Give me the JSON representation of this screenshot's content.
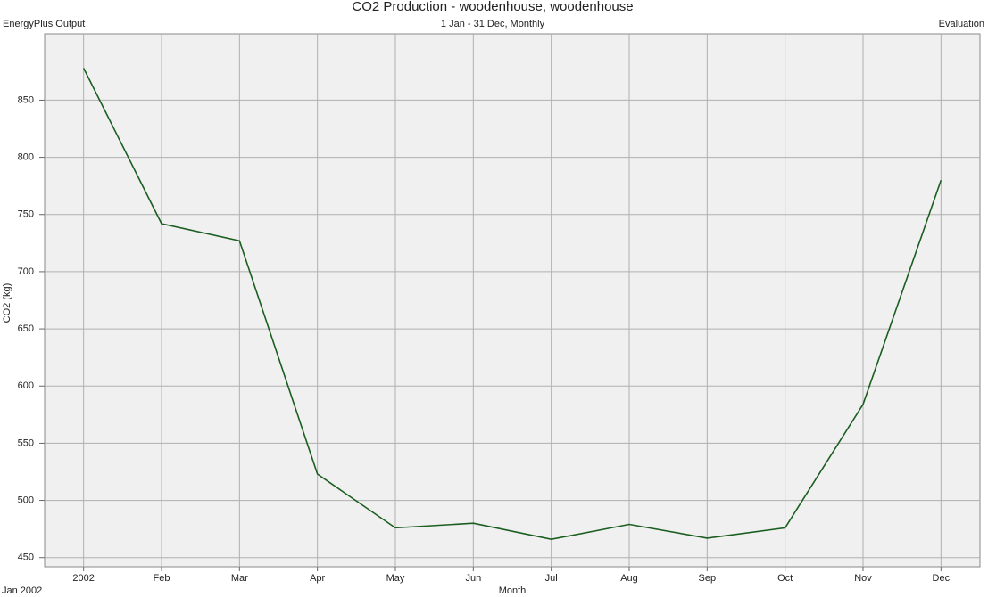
{
  "chart_data": {
    "type": "line",
    "title": "CO2 Production - woodenhouse, woodenhouse",
    "subtitle": "1 Jan - 31 Dec, Monthly",
    "header_left": "EnergyPlus Output",
    "header_right": "Evaluation",
    "x_start_label": "Jan 2002",
    "x_label": "Month",
    "y_label": "CO2 (kg)",
    "categories": [
      "2002",
      "Feb",
      "Mar",
      "Apr",
      "May",
      "Jun",
      "Jul",
      "Aug",
      "Sep",
      "Oct",
      "Nov",
      "Dec"
    ],
    "series": [
      {
        "name": "CO2 Production",
        "color": "#1b5e20",
        "values": [
          878,
          742,
          727,
          523,
          476,
          480,
          466,
          479,
          467,
          476,
          584,
          780
        ]
      }
    ],
    "ylim": [
      442,
      908
    ],
    "yticks": [
      450,
      500,
      550,
      600,
      650,
      700,
      750,
      800,
      850
    ],
    "grid": true,
    "legend": false
  }
}
